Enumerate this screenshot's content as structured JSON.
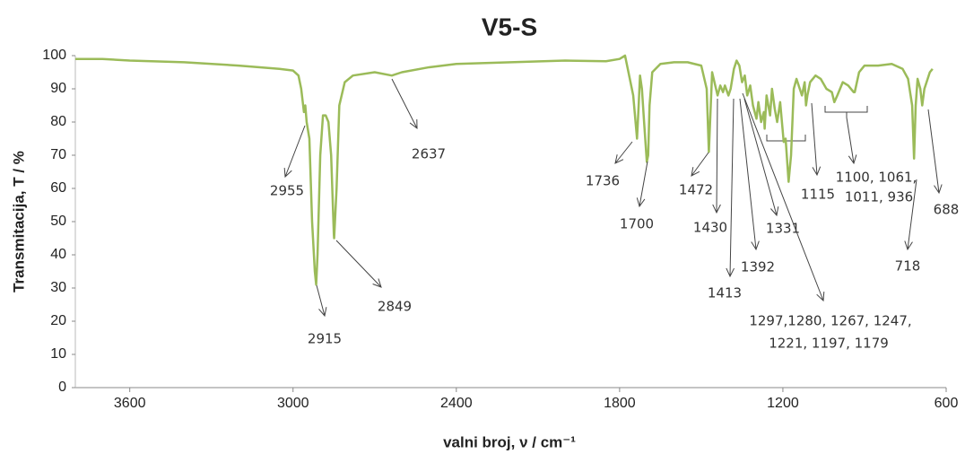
{
  "chart_data": {
    "type": "line",
    "title": "V5-S",
    "x_label": "valni broj, ν / cm⁻¹",
    "y_label": "Transmitacija, T / %",
    "xlim": [
      3800,
      600
    ],
    "xticks": [
      3600,
      3000,
      2400,
      1800,
      1200,
      600
    ],
    "ylim": [
      0,
      100
    ],
    "yticks": [
      0,
      10,
      20,
      30,
      40,
      50,
      60,
      70,
      80,
      90,
      100
    ],
    "x_reversed": true,
    "series": [
      {
        "name": "V5-S",
        "color": "#9bbb59",
        "x": [
          3800,
          3700,
          3600,
          3400,
          3200,
          3050,
          3000,
          2980,
          2970,
          2960,
          2955,
          2950,
          2940,
          2930,
          2920,
          2915,
          2910,
          2900,
          2890,
          2880,
          2870,
          2860,
          2850,
          2849,
          2840,
          2830,
          2810,
          2780,
          2700,
          2637,
          2600,
          2500,
          2400,
          2200,
          2000,
          1850,
          1800,
          1780,
          1770,
          1750,
          1736,
          1730,
          1725,
          1718,
          1710,
          1700,
          1695,
          1690,
          1680,
          1650,
          1600,
          1550,
          1500,
          1480,
          1472,
          1465,
          1460,
          1440,
          1430,
          1420,
          1413,
          1400,
          1392,
          1380,
          1370,
          1360,
          1350,
          1340,
          1331,
          1320,
          1310,
          1297,
          1290,
          1280,
          1270,
          1267,
          1260,
          1247,
          1240,
          1230,
          1221,
          1210,
          1197,
          1190,
          1179,
          1170,
          1160,
          1150,
          1130,
          1120,
          1115,
          1110,
          1100,
          1080,
          1061,
          1040,
          1020,
          1011,
          1000,
          980,
          960,
          940,
          936,
          920,
          900,
          850,
          800,
          760,
          740,
          725,
          718,
          712,
          705,
          695,
          688,
          680,
          660,
          650
        ],
        "values": [
          99,
          99,
          98.5,
          98,
          97,
          96,
          95.5,
          94,
          90,
          83,
          85,
          80,
          75,
          50,
          35,
          31,
          40,
          70,
          82,
          82,
          80,
          70,
          46,
          45,
          60,
          85,
          92,
          94,
          95,
          94,
          95,
          96.5,
          97.5,
          98,
          98.5,
          98.3,
          99,
          100,
          96,
          88,
          75,
          85,
          94,
          90,
          80,
          68,
          70,
          85,
          95,
          97.5,
          98,
          98,
          97,
          90,
          71,
          85,
          95,
          88,
          91,
          89,
          91,
          88,
          90,
          96,
          98.5,
          97,
          92,
          94,
          88,
          91,
          85,
          81,
          86,
          80,
          83,
          78,
          88,
          82,
          90,
          84,
          80,
          86,
          74,
          75,
          62,
          70,
          90,
          93,
          88,
          92,
          85,
          88,
          92,
          94,
          93,
          90,
          89,
          86,
          88,
          92,
          91,
          89,
          89,
          95,
          97,
          97,
          97.5,
          96,
          93,
          85,
          69,
          85,
          93,
          90,
          85,
          90,
          95,
          96
        ]
      }
    ],
    "annotations": [
      "2955",
      "2915",
      "2849",
      "2637",
      "1736",
      "1700",
      "1472",
      "1430",
      "1413",
      "1392",
      "1331",
      "1297,1280, 1267, 1247,",
      "1221, 1197, 1179",
      "1115",
      "1100, 1061,",
      "1011, 936",
      "718",
      "688"
    ]
  }
}
